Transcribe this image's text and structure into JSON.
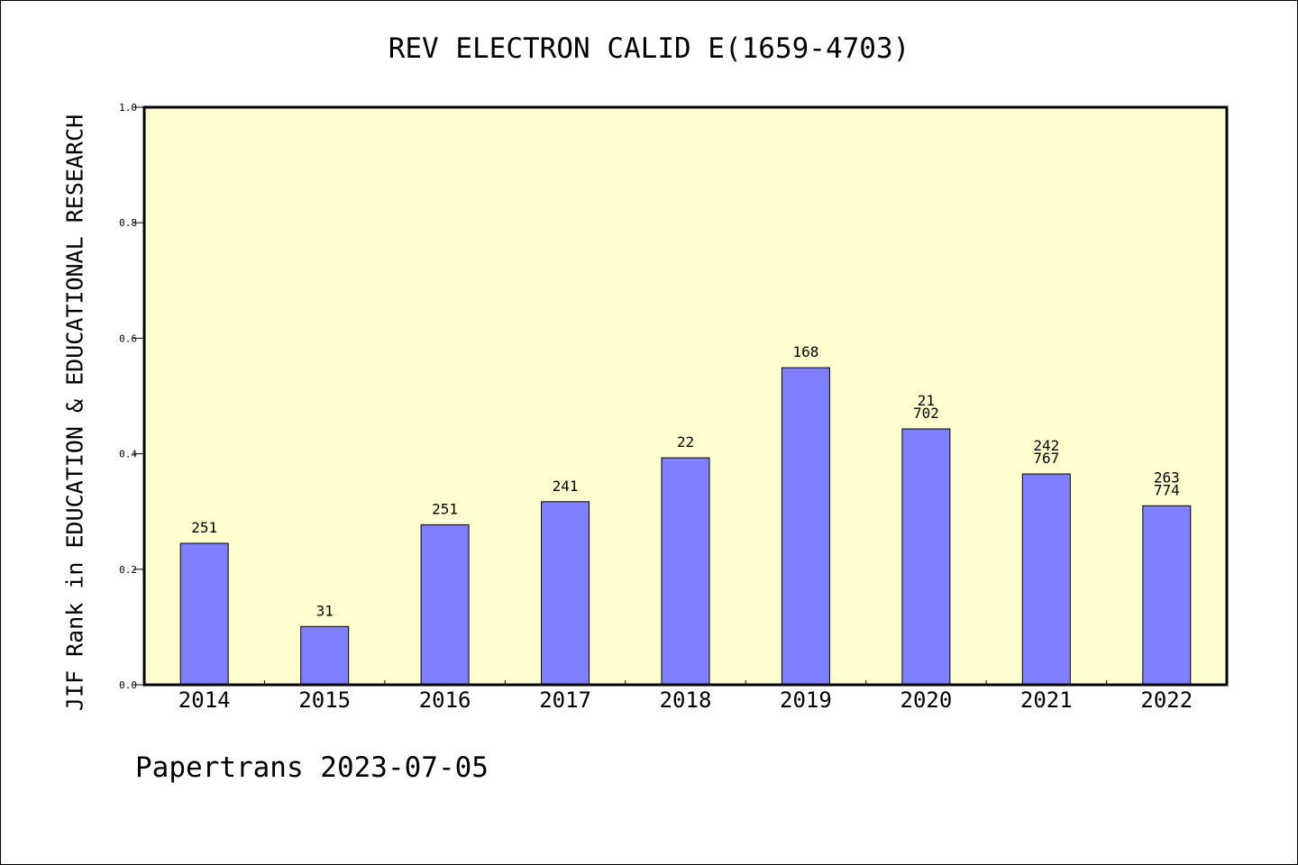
{
  "chart_data": {
    "type": "bar",
    "title": "REV ELECTRON CALID E(1659-4703)",
    "ylabel": "JIF Rank in EDUCATION & EDUCATIONAL RESEARCH",
    "xlabel": "",
    "categories": [
      "2014",
      "2015",
      "2016",
      "2017",
      "2018",
      "2019",
      "2020",
      "2021",
      "2022"
    ],
    "values": [
      0.245,
      0.101,
      0.277,
      0.317,
      0.393,
      0.549,
      0.443,
      0.365,
      0.31
    ],
    "bar_labels": [
      [
        "251"
      ],
      [
        "31"
      ],
      [
        "251"
      ],
      [
        "241"
      ],
      [
        "22"
      ],
      [
        "168"
      ],
      [
        "21",
        "702"
      ],
      [
        "242",
        "767"
      ],
      [
        "263",
        "774"
      ]
    ],
    "ylim": [
      0,
      1.0
    ],
    "yticks": [
      "0.0",
      "0.2",
      "0.4",
      "0.6",
      "0.8",
      "1.0"
    ],
    "grid": false,
    "plot_background": "#ffffd0",
    "bar_color": "#8080ff"
  },
  "footer": "Papertrans 2023-07-05"
}
